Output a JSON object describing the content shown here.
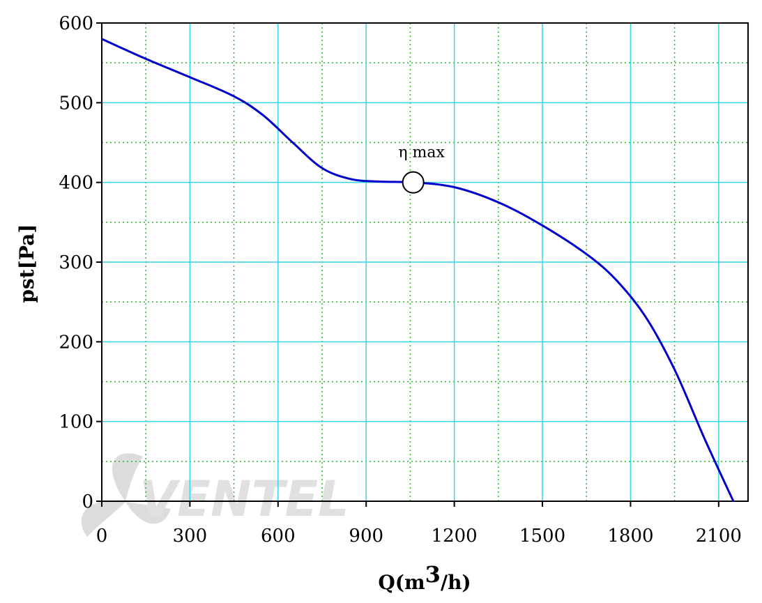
{
  "chart_data": {
    "type": "line",
    "xlabel": "Q(m3/h)",
    "xlabel_base": "Q(m",
    "xlabel_sup": "3",
    "xlabel_tail": "/h)",
    "ylabel": "pst[Pa]",
    "xlim": [
      0,
      2200
    ],
    "ylim": [
      0,
      600
    ],
    "x_ticks": [
      0,
      300,
      600,
      900,
      1200,
      1500,
      1800,
      2100
    ],
    "y_ticks": [
      0,
      100,
      200,
      300,
      400,
      500,
      600
    ],
    "grid": true,
    "series": [
      {
        "color": "#0000cc",
        "points": [
          [
            0,
            580
          ],
          [
            150,
            555
          ],
          [
            300,
            532
          ],
          [
            450,
            508
          ],
          [
            550,
            484
          ],
          [
            650,
            450
          ],
          [
            750,
            418
          ],
          [
            850,
            404
          ],
          [
            950,
            401
          ],
          [
            1060,
            400
          ],
          [
            1200,
            394
          ],
          [
            1350,
            375
          ],
          [
            1500,
            346
          ],
          [
            1650,
            310
          ],
          [
            1750,
            278
          ],
          [
            1850,
            232
          ],
          [
            1950,
            165
          ],
          [
            2050,
            80
          ],
          [
            2150,
            0
          ]
        ]
      }
    ],
    "annotations": [
      {
        "label": "η max",
        "x": 1060,
        "y": 400
      }
    ]
  },
  "watermark": {
    "text": "VENTEL"
  },
  "colors": {
    "curve": "#0000cc",
    "major_grid": "#33d6e6",
    "minor_grid": "#22bb22"
  }
}
